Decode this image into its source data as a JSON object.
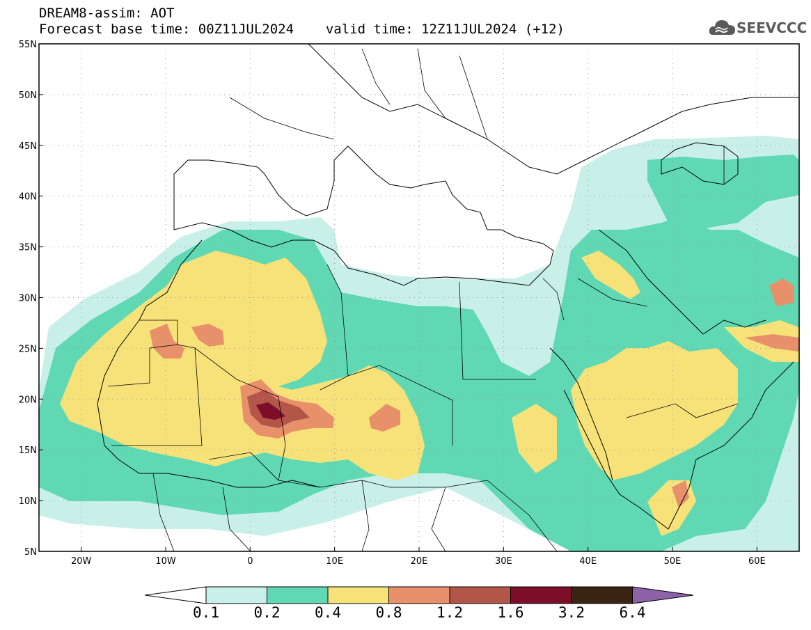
{
  "header": {
    "title": "DREAM8-assim: AOT",
    "base_time_label": "Forecast base time: 00Z11JUL2024",
    "valid_time_label": "valid time: 12Z11JUL2024 (+12)"
  },
  "logo": {
    "text": "SEEVCCC",
    "icon": "cloud-icon"
  },
  "map": {
    "lat_range": [
      5,
      55
    ],
    "lon_range": [
      -25,
      65
    ],
    "grid": true,
    "lat_labels": [
      "55N",
      "50N",
      "45N",
      "40N",
      "35N",
      "30N",
      "25N",
      "20N",
      "15N",
      "10N",
      "5N"
    ],
    "lon_labels": [
      "20W",
      "10W",
      "0",
      "10E",
      "20E",
      "30E",
      "40E",
      "50E",
      "60E"
    ]
  },
  "colorbar": {
    "thresholds": [
      "0.1",
      "0.2",
      "0.4",
      "0.8",
      "1.2",
      "1.6",
      "3.2",
      "6.4"
    ],
    "colors": [
      "#c9efe9",
      "#5fd8b3",
      "#f7e27a",
      "#e8906a",
      "#b35548",
      "#7d0e2a",
      "#3b2414",
      "#8e62a8"
    ],
    "under_color": "#ffffff"
  }
}
